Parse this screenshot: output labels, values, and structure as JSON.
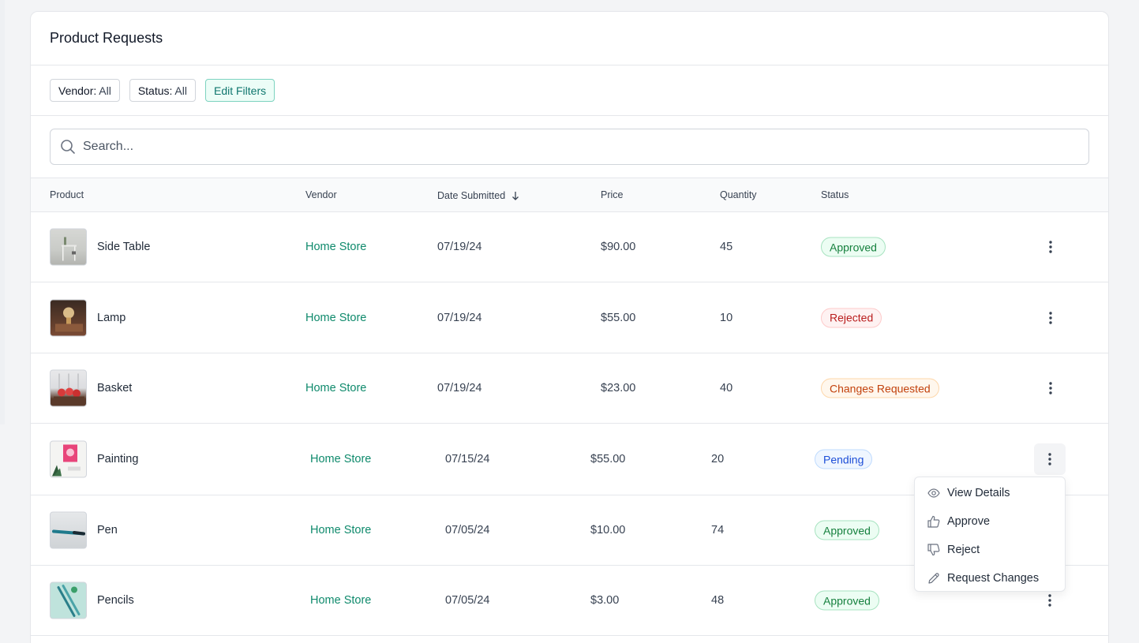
{
  "page": {
    "title": "Product Requests"
  },
  "filters": {
    "vendor": {
      "key": "Vendor:",
      "value": "All"
    },
    "status": {
      "key": "Status:",
      "value": "All"
    },
    "edit_label": "Edit Filters"
  },
  "search": {
    "placeholder": "Search..."
  },
  "columns": {
    "product": "Product",
    "vendor": "Vendor",
    "date": "Date Submitted",
    "price": "Price",
    "quantity": "Quantity",
    "status": "Status"
  },
  "rows": [
    {
      "product": "Side Table",
      "vendor": "Home Store",
      "date": "07/19/24",
      "price": "$90.00",
      "quantity": "45",
      "status": "Approved"
    },
    {
      "product": "Lamp",
      "vendor": "Home Store",
      "date": "07/19/24",
      "price": "$55.00",
      "quantity": "10",
      "status": "Rejected"
    },
    {
      "product": "Basket",
      "vendor": "Home Store",
      "date": "07/19/24",
      "price": "$23.00",
      "quantity": "40",
      "status": "Changes Requested"
    },
    {
      "product": "Painting",
      "vendor": "Home Store",
      "date": "07/15/24",
      "price": "$55.00",
      "quantity": "20",
      "status": "Pending"
    },
    {
      "product": "Pen",
      "vendor": "Home Store",
      "date": "07/05/24",
      "price": "$10.00",
      "quantity": "74",
      "status": "Approved"
    },
    {
      "product": "Pencils",
      "vendor": "Home Store",
      "date": "07/05/24",
      "price": "$3.00",
      "quantity": "48",
      "status": "Approved"
    }
  ],
  "row_menu": {
    "view_details": "View Details",
    "approve": "Approve",
    "reject": "Reject",
    "request_changes": "Request Changes"
  },
  "colors": {
    "accent": "#0f8a6c",
    "approved": "#15803d",
    "rejected": "#b91c1c",
    "changes": "#c2410c",
    "pending": "#1d4ed8"
  }
}
